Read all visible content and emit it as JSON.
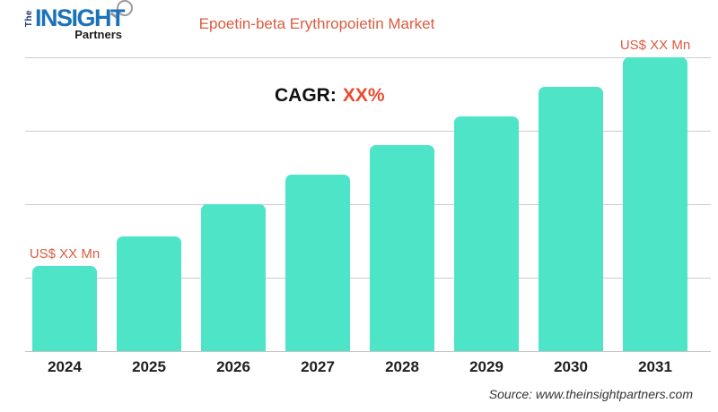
{
  "logo": {
    "the": "The",
    "insight": "INSIGHT",
    "partners": "Partners"
  },
  "header": {
    "title": "Epoetin-beta Erythropoietin Market"
  },
  "cagr": {
    "label": "CAGR:",
    "value": "XX%"
  },
  "source": {
    "text": "Source: www.theinsightpartners.com"
  },
  "colors": {
    "bar": "#4de4c8",
    "title_orange": "#db5b40",
    "cagr_orange": "#e84c30",
    "grid": "#cccccc",
    "logo_blue": "#1b72b8",
    "logo_navy": "#17376b",
    "text_dark": "#1f1f1f"
  },
  "chart_data": {
    "type": "bar",
    "title": "Epoetin-beta Erythropoietin Market",
    "categories": [
      "2024",
      "2025",
      "2026",
      "2027",
      "2028",
      "2029",
      "2030",
      "2031"
    ],
    "values": [
      29,
      39,
      50,
      60,
      70,
      80,
      90,
      100
    ],
    "values_note": "actual market values undisclosed (shown as XX); values are bar heights as % of tallest bar",
    "xlabel": "",
    "ylabel": "",
    "ylim": [
      0,
      100
    ],
    "grid": true,
    "legend": false,
    "annotations": [
      {
        "category": "2024",
        "text": "US$ XX Mn"
      },
      {
        "category": "2031",
        "text": "US$ XX Mn"
      }
    ]
  }
}
